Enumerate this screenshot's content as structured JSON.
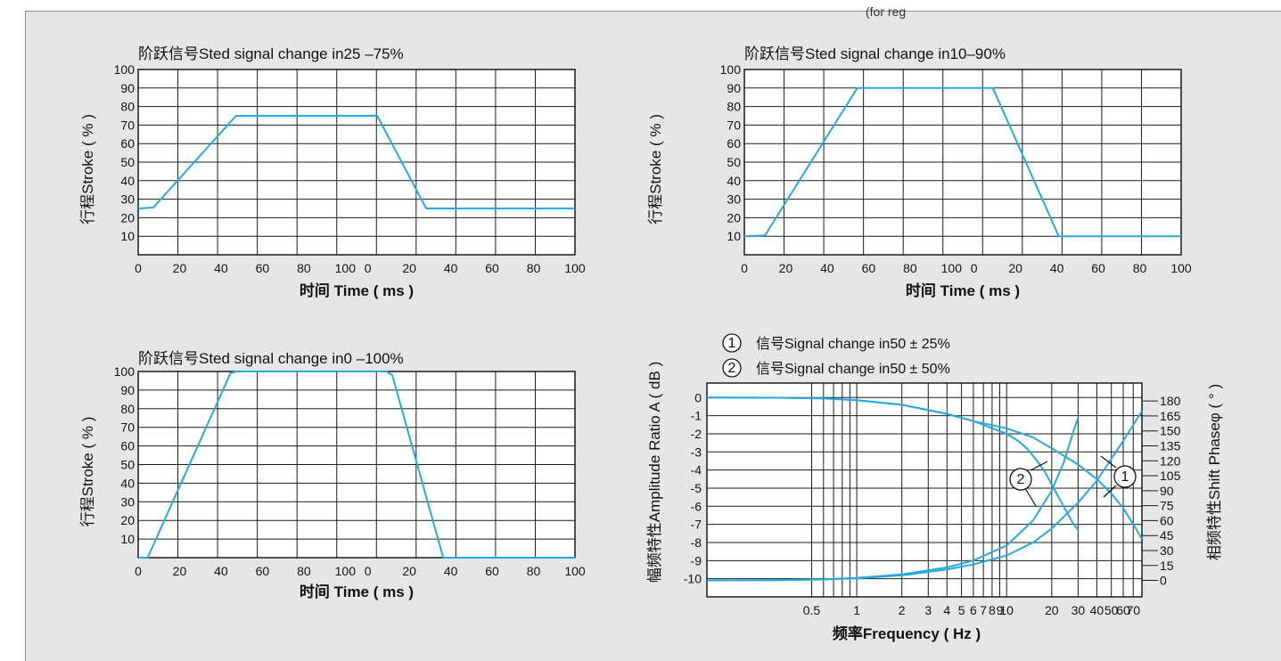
{
  "corner_caption": "(for reg",
  "chart_data": [
    {
      "type": "line",
      "title": "阶跃信号Sted signal change in25 –75%",
      "xlabel": "时间 Time ( ms )",
      "ylabel": "行程Stroke ( % )",
      "xticks": [
        "0",
        "20",
        "40",
        "60",
        "80",
        "100",
        "0",
        "20",
        "40",
        "60",
        "80",
        "100"
      ],
      "yticks": [
        "10",
        "20",
        "30",
        "40",
        "50",
        "60",
        "70",
        "80",
        "90",
        "100"
      ],
      "ylim": [
        0,
        100
      ],
      "x_segments": [
        [
          0,
          100
        ],
        [
          0,
          100
        ]
      ],
      "grid": true,
      "series": [
        {
          "color": "#29a8e0",
          "points": [
            [
              0,
              25
            ],
            [
              8,
              25.5
            ],
            [
              52,
              75
            ],
            [
              110,
              75
            ],
            [
              127,
              75
            ],
            [
              153,
              25
            ],
            [
              232,
              25
            ]
          ]
        }
      ]
    },
    {
      "type": "line",
      "title": "阶跃信号Sted signal change in10–90%",
      "xlabel": "时间 Time ( ms )",
      "ylabel": "行程Stroke ( % )",
      "xticks": [
        "0",
        "20",
        "40",
        "60",
        "80",
        "100",
        "0",
        "20",
        "40",
        "60",
        "80",
        "100"
      ],
      "yticks": [
        "10",
        "20",
        "30",
        "40",
        "50",
        "60",
        "70",
        "80",
        "90",
        "100"
      ],
      "ylim": [
        0,
        100
      ],
      "x_segments": [
        [
          0,
          100
        ],
        [
          0,
          100
        ]
      ],
      "grid": true,
      "series": [
        {
          "color": "#29a8e0",
          "points": [
            [
              0,
              10
            ],
            [
              11,
              10.5
            ],
            [
              60,
              90
            ],
            [
              110,
              90
            ],
            [
              132,
              90
            ],
            [
              167,
              10
            ],
            [
              232,
              10
            ]
          ]
        }
      ]
    },
    {
      "type": "line",
      "title": "阶跃信号Sted signal change in0 –100%",
      "xlabel": "时间 Time ( ms )",
      "ylabel": "行程Stroke ( % )",
      "xticks": [
        "0",
        "20",
        "40",
        "60",
        "80",
        "100",
        "0",
        "20",
        "40",
        "60",
        "80",
        "100"
      ],
      "yticks": [
        "10",
        "20",
        "30",
        "40",
        "50",
        "60",
        "70",
        "80",
        "90",
        "100"
      ],
      "ylim": [
        0,
        100
      ],
      "x_segments": [
        [
          0,
          100
        ],
        [
          0,
          100
        ]
      ],
      "grid": true,
      "series": [
        {
          "color": "#29a8e0",
          "points": [
            [
              0,
              0
            ],
            [
              5,
              0
            ],
            [
              49,
              99
            ],
            [
              52,
              100
            ],
            [
              120,
              100
            ],
            [
              132,
              100
            ],
            [
              135,
              98
            ],
            [
              162,
              0
            ],
            [
              232,
              0
            ]
          ]
        }
      ]
    },
    {
      "type": "line",
      "title": "",
      "xlabel": "频率Frequency ( Hz )",
      "ylabel": "幅频特性Amplitude Ratio A ( dB )",
      "y2label": "相频特性Shift Phaseφ ( ° )",
      "xscale": "log",
      "xlim": [
        0.1,
        80
      ],
      "ylim": [
        -11,
        0.8
      ],
      "y2lim": [
        -16.5,
        198
      ],
      "xticks": [
        "0.5",
        "1",
        "2",
        "3",
        "4",
        "5",
        "6",
        "7",
        "8",
        "9",
        "10",
        "20",
        "30",
        "40",
        "50",
        "60",
        "70"
      ],
      "yticks": [
        "0",
        "-1",
        "-2",
        "-3",
        "-4",
        "-5",
        "-6",
        "-7",
        "-8",
        "-9",
        "-10"
      ],
      "y2ticks": [
        "180",
        "165",
        "150",
        "135",
        "120",
        "105",
        "90",
        "75",
        "60",
        "45",
        "30",
        "15",
        "0"
      ],
      "legend": [
        {
          "marker": "1",
          "label": "信号Signal change in50 ± 25%"
        },
        {
          "marker": "2",
          "label": "信号Signal change in50 ± 50%"
        }
      ],
      "callouts": [
        "2",
        "1"
      ],
      "grid": true,
      "series": [
        {
          "name": "1",
          "axis": "left",
          "color": "#29a8e0",
          "x": [
            0.1,
            0.3,
            0.6,
            1,
            2,
            4,
            6,
            10,
            15,
            20,
            30,
            40,
            50,
            60,
            70,
            80
          ],
          "y": [
            0,
            -0.01,
            -0.05,
            -0.15,
            -0.4,
            -0.9,
            -1.3,
            -1.7,
            -2.2,
            -2.8,
            -3.7,
            -4.5,
            -5.3,
            -6.1,
            -7.0,
            -7.8
          ]
        },
        {
          "name": "2",
          "axis": "left",
          "color": "#29a8e0",
          "x": [
            0.1,
            0.3,
            0.6,
            1,
            2,
            4,
            6,
            10,
            12,
            14,
            16,
            18,
            20,
            24,
            28,
            30
          ],
          "y": [
            0,
            -0.01,
            -0.05,
            -0.15,
            -0.4,
            -0.9,
            -1.3,
            -2.0,
            -2.4,
            -2.9,
            -3.5,
            -4.1,
            -4.8,
            -6.0,
            -7.0,
            -7.3
          ]
        },
        {
          "name": "1",
          "axis": "right",
          "color": "#29a8e0",
          "x": [
            0.1,
            0.3,
            0.6,
            1,
            2,
            4,
            6,
            10,
            15,
            20,
            30,
            40,
            50,
            60,
            70,
            80
          ],
          "y": [
            0,
            0.3,
            1,
            2,
            5,
            11,
            16,
            25,
            38,
            52,
            78,
            100,
            122,
            140,
            156,
            170
          ]
        },
        {
          "name": "2",
          "axis": "right",
          "color": "#29a8e0",
          "x": [
            0.1,
            0.3,
            0.6,
            1,
            2,
            4,
            6,
            10,
            15,
            20,
            24,
            28,
            30
          ],
          "y": [
            0,
            0.3,
            1,
            2.5,
            6,
            13,
            20,
            35,
            60,
            90,
            118,
            150,
            163
          ]
        }
      ]
    }
  ]
}
